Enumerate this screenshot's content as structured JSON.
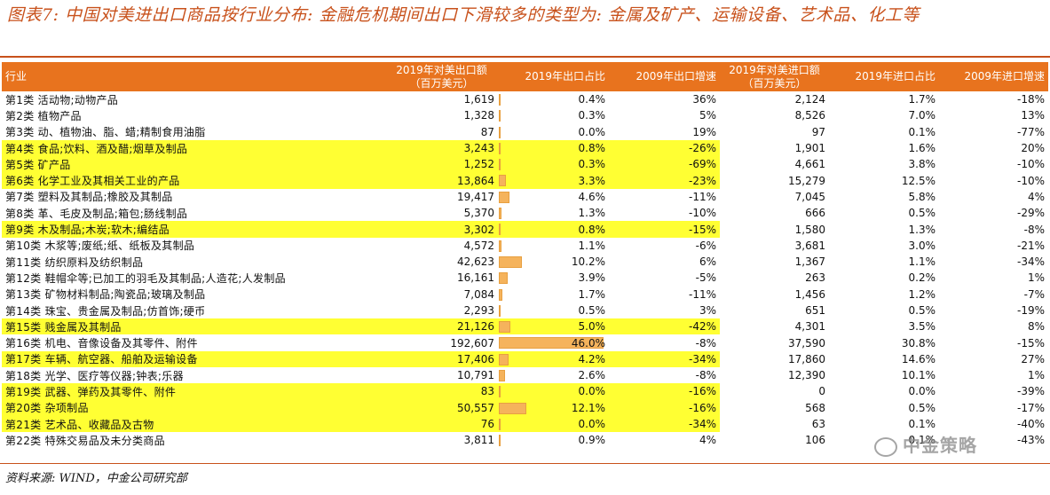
{
  "title": "图表7: 中国对美进出口商品按行业分布: 金融危机期间出口下滑较多的类型为: 金属及矿产、运输设备、艺术品、化工等",
  "headers": {
    "industry": "行业",
    "exp_value": "2019年对美出口额（百万美元）",
    "exp_share": "2019年出口占比",
    "exp_growth": "2009年出口增速",
    "imp_value": "2019年对美进口额（百万美元）",
    "imp_share": "2019年进口占比",
    "imp_growth": "2009年进口增速"
  },
  "highlight_color": "#ffff33",
  "header_color": "#e8731e",
  "rows": [
    {
      "industry": "第1类 活动物;动物产品",
      "exp_value": "1,619",
      "exp_share": "0.4%",
      "exp_share_num": 0.4,
      "exp_growth": "36%",
      "imp_value": "2,124",
      "imp_share": "1.7%",
      "imp_growth": "-18%",
      "highlight": false
    },
    {
      "industry": "第2类 植物产品",
      "exp_value": "1,328",
      "exp_share": "0.3%",
      "exp_share_num": 0.3,
      "exp_growth": "5%",
      "imp_value": "8,526",
      "imp_share": "7.0%",
      "imp_growth": "13%",
      "highlight": false
    },
    {
      "industry": "第3类 动、植物油、脂、蜡;精制食用油脂",
      "exp_value": "87",
      "exp_share": "0.0%",
      "exp_share_num": 0.0,
      "exp_growth": "19%",
      "imp_value": "97",
      "imp_share": "0.1%",
      "imp_growth": "-77%",
      "highlight": false
    },
    {
      "industry": "第4类 食品;饮料、酒及醋;烟草及制品",
      "exp_value": "3,243",
      "exp_share": "0.8%",
      "exp_share_num": 0.8,
      "exp_growth": "-26%",
      "imp_value": "1,901",
      "imp_share": "1.6%",
      "imp_growth": "20%",
      "highlight": true
    },
    {
      "industry": "第5类 矿产品",
      "exp_value": "1,252",
      "exp_share": "0.3%",
      "exp_share_num": 0.3,
      "exp_growth": "-69%",
      "imp_value": "4,661",
      "imp_share": "3.8%",
      "imp_growth": "-10%",
      "highlight": true
    },
    {
      "industry": "第6类 化学工业及其相关工业的产品",
      "exp_value": "13,864",
      "exp_share": "3.3%",
      "exp_share_num": 3.3,
      "exp_growth": "-23%",
      "imp_value": "15,279",
      "imp_share": "12.5%",
      "imp_growth": "-10%",
      "highlight": true
    },
    {
      "industry": "第7类 塑料及其制品;橡胶及其制品",
      "exp_value": "19,417",
      "exp_share": "4.6%",
      "exp_share_num": 4.6,
      "exp_growth": "-11%",
      "imp_value": "7,045",
      "imp_share": "5.8%",
      "imp_growth": "4%",
      "highlight": false
    },
    {
      "industry": "第8类 革、毛皮及制品;箱包;肠线制品",
      "exp_value": "5,370",
      "exp_share": "1.3%",
      "exp_share_num": 1.3,
      "exp_growth": "-10%",
      "imp_value": "666",
      "imp_share": "0.5%",
      "imp_growth": "-29%",
      "highlight": false
    },
    {
      "industry": "第9类 木及制品;木炭;软木;编结品",
      "exp_value": "3,302",
      "exp_share": "0.8%",
      "exp_share_num": 0.8,
      "exp_growth": "-15%",
      "imp_value": "1,580",
      "imp_share": "1.3%",
      "imp_growth": "-8%",
      "highlight": true
    },
    {
      "industry": "第10类 木浆等;废纸;纸、纸板及其制品",
      "exp_value": "4,572",
      "exp_share": "1.1%",
      "exp_share_num": 1.1,
      "exp_growth": "-6%",
      "imp_value": "3,681",
      "imp_share": "3.0%",
      "imp_growth": "-21%",
      "highlight": false
    },
    {
      "industry": "第11类 纺织原料及纺织制品",
      "exp_value": "42,623",
      "exp_share": "10.2%",
      "exp_share_num": 10.2,
      "exp_growth": "6%",
      "imp_value": "1,367",
      "imp_share": "1.1%",
      "imp_growth": "-34%",
      "highlight": false
    },
    {
      "industry": "第12类 鞋帽伞等;已加工的羽毛及其制品;人造花;人发制品",
      "exp_value": "16,161",
      "exp_share": "3.9%",
      "exp_share_num": 3.9,
      "exp_growth": "-5%",
      "imp_value": "263",
      "imp_share": "0.2%",
      "imp_growth": "1%",
      "highlight": false
    },
    {
      "industry": "第13类 矿物材料制品;陶瓷品;玻璃及制品",
      "exp_value": "7,084",
      "exp_share": "1.7%",
      "exp_share_num": 1.7,
      "exp_growth": "-11%",
      "imp_value": "1,456",
      "imp_share": "1.2%",
      "imp_growth": "-7%",
      "highlight": false
    },
    {
      "industry": "第14类 珠宝、贵金属及制品;仿首饰;硬币",
      "exp_value": "2,293",
      "exp_share": "0.5%",
      "exp_share_num": 0.5,
      "exp_growth": "3%",
      "imp_value": "651",
      "imp_share": "0.5%",
      "imp_growth": "-19%",
      "highlight": false
    },
    {
      "industry": "第15类 贱金属及其制品",
      "exp_value": "21,126",
      "exp_share": "5.0%",
      "exp_share_num": 5.0,
      "exp_growth": "-42%",
      "imp_value": "4,301",
      "imp_share": "3.5%",
      "imp_growth": "8%",
      "highlight": true
    },
    {
      "industry": "第16类 机电、音像设备及其零件、附件",
      "exp_value": "192,607",
      "exp_share": "46.0%",
      "exp_share_num": 46.0,
      "exp_growth": "-8%",
      "imp_value": "37,590",
      "imp_share": "30.8%",
      "imp_growth": "-15%",
      "highlight": false
    },
    {
      "industry": "第17类 车辆、航空器、船舶及运输设备",
      "exp_value": "17,406",
      "exp_share": "4.2%",
      "exp_share_num": 4.2,
      "exp_growth": "-34%",
      "imp_value": "17,860",
      "imp_share": "14.6%",
      "imp_growth": "27%",
      "highlight": true
    },
    {
      "industry": "第18类 光学、医疗等仪器;钟表;乐器",
      "exp_value": "10,791",
      "exp_share": "2.6%",
      "exp_share_num": 2.6,
      "exp_growth": "-8%",
      "imp_value": "12,390",
      "imp_share": "10.1%",
      "imp_growth": "1%",
      "highlight": false
    },
    {
      "industry": "第19类 武器、弹药及其零件、附件",
      "exp_value": "83",
      "exp_share": "0.0%",
      "exp_share_num": 0.0,
      "exp_growth": "-16%",
      "imp_value": "0",
      "imp_share": "0.0%",
      "imp_growth": "-39%",
      "highlight": true
    },
    {
      "industry": "第20类 杂项制品",
      "exp_value": "50,557",
      "exp_share": "12.1%",
      "exp_share_num": 12.1,
      "exp_growth": "-16%",
      "imp_value": "568",
      "imp_share": "0.5%",
      "imp_growth": "-17%",
      "highlight": true
    },
    {
      "industry": "第21类 艺术品、收藏品及古物",
      "exp_value": "76",
      "exp_share": "0.0%",
      "exp_share_num": 0.0,
      "exp_growth": "-34%",
      "imp_value": "63",
      "imp_share": "0.1%",
      "imp_growth": "-40%",
      "highlight": true
    },
    {
      "industry": "第22类 特殊交易品及未分类商品",
      "exp_value": "3,811",
      "exp_share": "0.9%",
      "exp_share_num": 0.9,
      "exp_growth": "4%",
      "imp_value": "106",
      "imp_share": "0.1%",
      "imp_growth": "-43%",
      "highlight": false
    }
  ],
  "source": "资料来源: WIND，中金公司研究部",
  "watermark": "中金策略"
}
